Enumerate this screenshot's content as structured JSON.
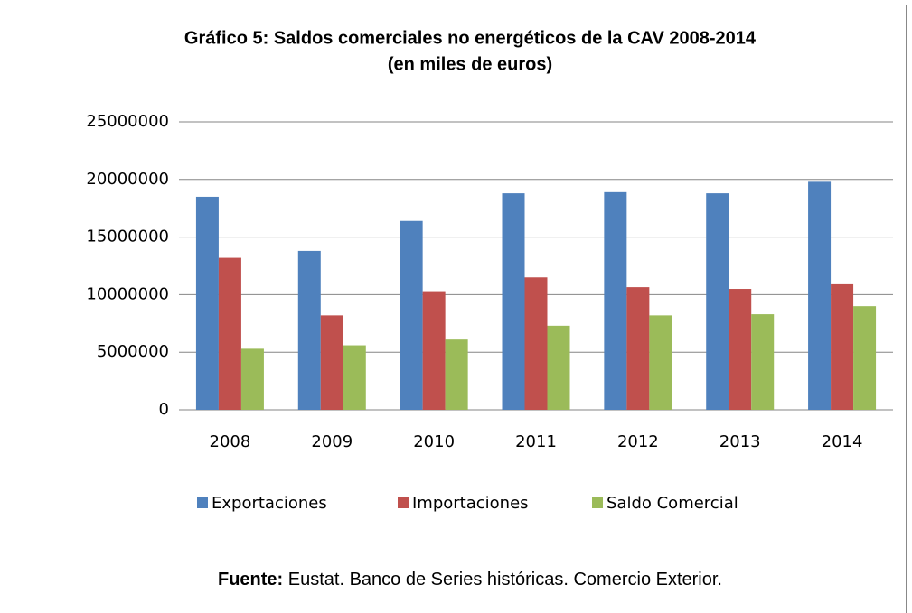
{
  "chart_data": {
    "type": "bar",
    "title": "Gráfico 5: Saldos comerciales no energéticos de la CAV 2008-2014",
    "subtitle": "(en miles de euros)",
    "categories": [
      "2008",
      "2009",
      "2010",
      "2011",
      "2012",
      "2013",
      "2014"
    ],
    "series": [
      {
        "name": "Exportaciones",
        "color": "#4f81bd",
        "values": [
          18500000,
          13800000,
          16400000,
          18800000,
          18900000,
          18800000,
          19800000
        ]
      },
      {
        "name": "Importaciones",
        "color": "#c0504d",
        "values": [
          13200000,
          8200000,
          10300000,
          11500000,
          10650000,
          10500000,
          10900000
        ]
      },
      {
        "name": "Saldo Comercial",
        "color": "#9bbb59",
        "values": [
          5300000,
          5600000,
          6100000,
          7300000,
          8200000,
          8300000,
          9000000
        ]
      }
    ],
    "ylim": [
      0,
      25000000
    ],
    "yticks": [
      0,
      5000000,
      10000000,
      15000000,
      20000000,
      25000000
    ],
    "grid": true,
    "legend": "bottom",
    "source_label": "Fuente:",
    "source": " Eustat. Banco de Series históricas. Comercio Exterior."
  }
}
